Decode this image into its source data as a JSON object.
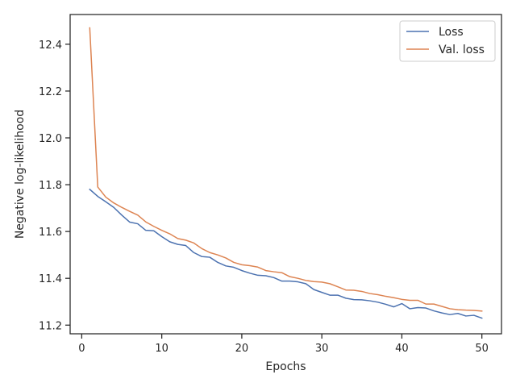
{
  "chart_data": {
    "type": "line",
    "title": "",
    "xlabel": "Epochs",
    "ylabel": "Negative log-likelihood",
    "xlim": [
      -1.45,
      52.45
    ],
    "ylim": [
      11.163,
      12.527
    ],
    "xticks": [
      0,
      10,
      20,
      30,
      40,
      50
    ],
    "yticks": [
      11.2,
      11.4,
      11.6,
      11.8,
      12.0,
      12.2,
      12.4
    ],
    "grid": false,
    "legend": "top-right",
    "x": [
      1,
      2,
      3,
      4,
      5,
      6,
      7,
      8,
      9,
      10,
      11,
      12,
      13,
      14,
      15,
      16,
      17,
      18,
      19,
      20,
      21,
      22,
      23,
      24,
      25,
      26,
      27,
      28,
      29,
      30,
      31,
      32,
      33,
      34,
      35,
      36,
      37,
      38,
      39,
      40,
      41,
      42,
      43,
      44,
      45,
      46,
      47,
      48,
      49,
      50
    ],
    "series": [
      {
        "name": "Loss",
        "color": "#4c72b0",
        "values": [
          11.78,
          11.75,
          11.727,
          11.703,
          11.67,
          11.64,
          11.633,
          11.605,
          11.603,
          11.578,
          11.556,
          11.545,
          11.54,
          11.51,
          11.493,
          11.49,
          11.468,
          11.453,
          11.447,
          11.433,
          11.422,
          11.413,
          11.411,
          11.403,
          11.388,
          11.388,
          11.385,
          11.377,
          11.352,
          11.34,
          11.328,
          11.328,
          11.315,
          11.309,
          11.308,
          11.304,
          11.298,
          11.289,
          11.278,
          11.292,
          11.27,
          11.275,
          11.273,
          11.261,
          11.252,
          11.245,
          11.25,
          11.239,
          11.242,
          11.23
        ]
      },
      {
        "name": "Val. loss",
        "color": "#dd8452",
        "values": [
          12.47,
          11.79,
          11.747,
          11.722,
          11.703,
          11.686,
          11.67,
          11.641,
          11.622,
          11.605,
          11.59,
          11.57,
          11.563,
          11.551,
          11.527,
          11.51,
          11.5,
          11.487,
          11.468,
          11.458,
          11.454,
          11.448,
          11.433,
          11.428,
          11.424,
          11.407,
          11.4,
          11.391,
          11.386,
          11.384,
          11.377,
          11.364,
          11.35,
          11.349,
          11.344,
          11.335,
          11.33,
          11.323,
          11.317,
          11.31,
          11.306,
          11.306,
          11.29,
          11.29,
          11.28,
          11.27,
          11.266,
          11.264,
          11.263,
          11.26
        ]
      }
    ]
  }
}
